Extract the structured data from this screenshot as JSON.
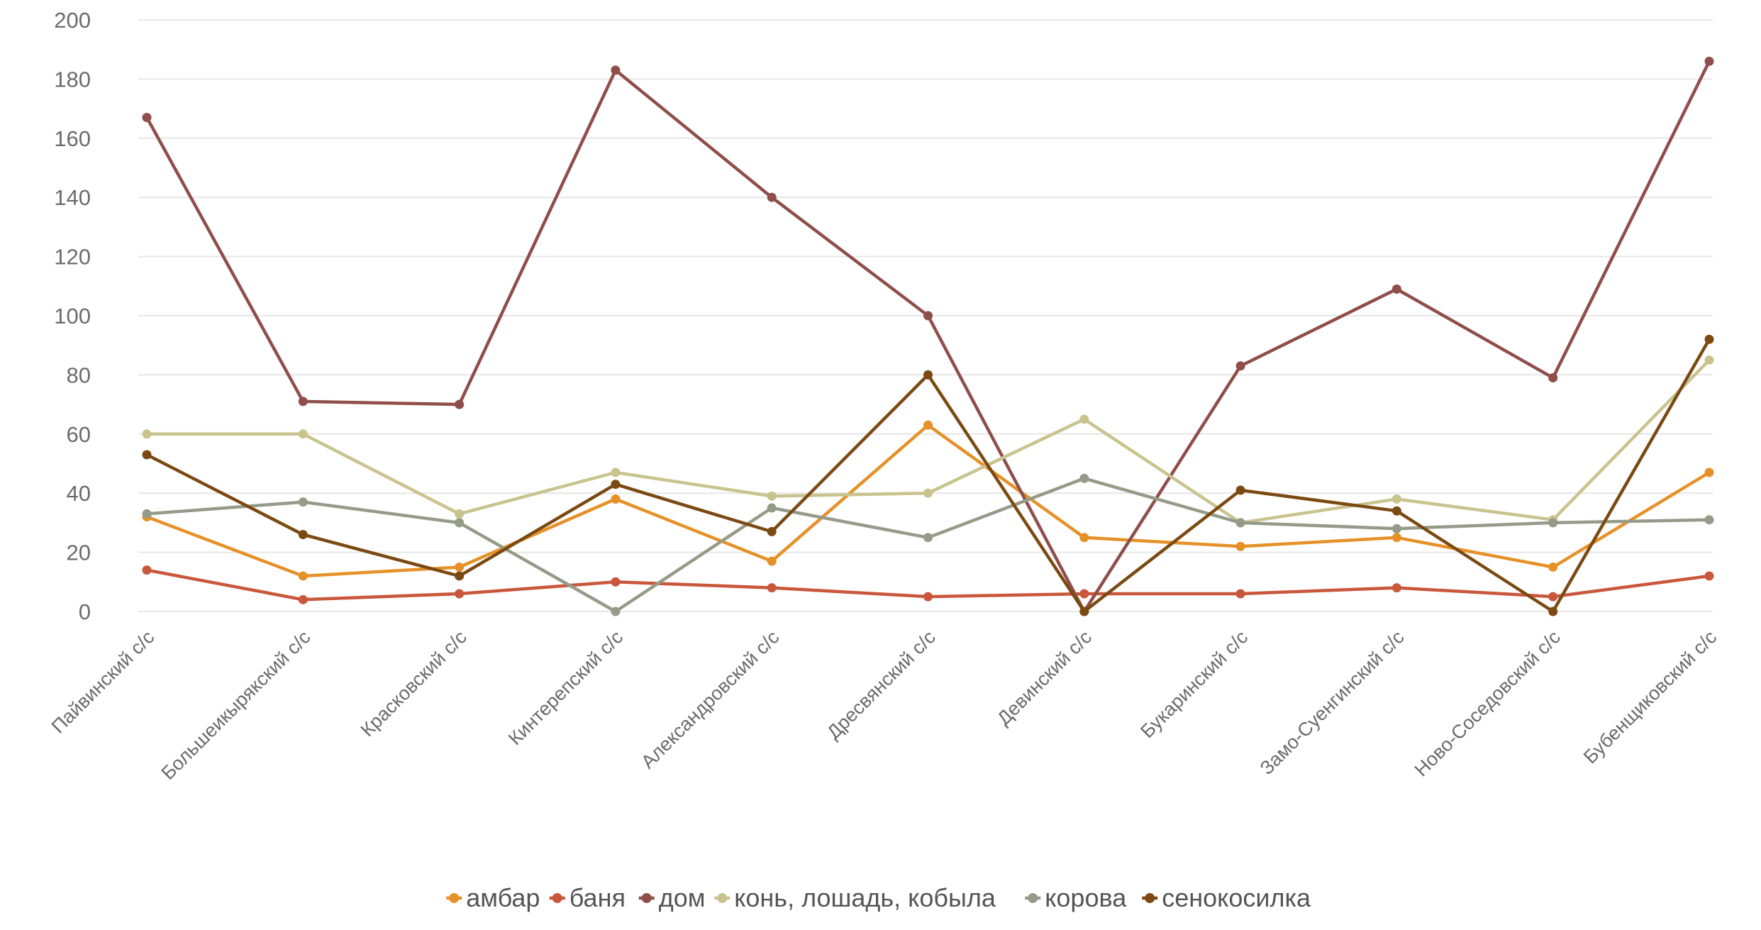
{
  "chart_data": {
    "type": "line",
    "title": "",
    "xlabel": "",
    "ylabel": "",
    "ylim": [
      0,
      200
    ],
    "yticks": [
      0,
      20,
      40,
      60,
      80,
      100,
      120,
      140,
      160,
      180,
      200
    ],
    "grid": true,
    "legend_position": "bottom",
    "categories": [
      "Пайвинский с/с",
      "Большеикырякский с/с",
      "Красковский с/с",
      "Кинтерепский с/с",
      "Александровский с/с",
      "Дресвянский с/с",
      "Девинский с/с",
      "Букаринский с/с",
      "Замо-Суенгинский с/с",
      "Ново-Соседовский с/с",
      "Бубенщиковский с/с"
    ],
    "series": [
      {
        "name": "амбар",
        "color": "#e69128",
        "values": [
          32,
          12,
          15,
          38,
          17,
          63,
          25,
          22,
          25,
          15,
          47
        ]
      },
      {
        "name": "баня",
        "color": "#c9573c",
        "values": [
          14,
          4,
          6,
          10,
          8,
          5,
          6,
          6,
          8,
          5,
          12
        ]
      },
      {
        "name": "дом",
        "color": "#8f4e4a",
        "values": [
          167,
          71,
          70,
          183,
          140,
          100,
          0,
          83,
          109,
          79,
          186
        ]
      },
      {
        "name": "конь, лошадь, кобыла",
        "color": "#c9c38e",
        "values": [
          60,
          60,
          33,
          47,
          39,
          40,
          65,
          30,
          38,
          31,
          85
        ]
      },
      {
        "name": "корова",
        "color": "#959b89",
        "values": [
          33,
          37,
          30,
          0,
          35,
          25,
          45,
          30,
          28,
          30,
          31
        ]
      },
      {
        "name": "сенокосилка",
        "color": "#7b4a12",
        "values": [
          53,
          26,
          12,
          43,
          27,
          80,
          0,
          41,
          34,
          0,
          92
        ]
      }
    ]
  }
}
